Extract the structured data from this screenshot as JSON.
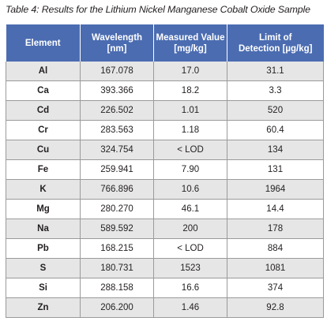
{
  "caption": "Table 4: Results for the Lithium Nickel Manganese Cobalt Oxide Sample",
  "header": {
    "element": "Element",
    "wavelength_line1": "Wavelength",
    "wavelength_line2": "[nm]",
    "measured_line1": "Measured Value",
    "measured_line2": "[mg/kg]",
    "lod_line1": "Limit of",
    "lod_line2": "Detection [µg/kg]"
  },
  "rows": [
    {
      "element": "Al",
      "wavelength": "167.078",
      "measured": "17.0",
      "lod": "31.1"
    },
    {
      "element": "Ca",
      "wavelength": "393.366",
      "measured": "18.2",
      "lod": "3.3"
    },
    {
      "element": "Cd",
      "wavelength": "226.502",
      "measured": "1.01",
      "lod": "520"
    },
    {
      "element": "Cr",
      "wavelength": "283.563",
      "measured": "1.18",
      "lod": "60.4"
    },
    {
      "element": "Cu",
      "wavelength": "324.754",
      "measured": "< LOD",
      "lod": "134"
    },
    {
      "element": "Fe",
      "wavelength": "259.941",
      "measured": "7.90",
      "lod": "131"
    },
    {
      "element": "K",
      "wavelength": "766.896",
      "measured": "10.6",
      "lod": "1964"
    },
    {
      "element": "Mg",
      "wavelength": "280.270",
      "measured": "46.1",
      "lod": "14.4"
    },
    {
      "element": "Na",
      "wavelength": "589.592",
      "measured": "200",
      "lod": "178"
    },
    {
      "element": "Pb",
      "wavelength": "168.215",
      "measured": "< LOD",
      "lod": "884"
    },
    {
      "element": "S",
      "wavelength": "180.731",
      "measured": "1523",
      "lod": "1081"
    },
    {
      "element": "Si",
      "wavelength": "288.158",
      "measured": "16.6",
      "lod": "374"
    },
    {
      "element": "Zn",
      "wavelength": "206.200",
      "measured": "1.46",
      "lod": "92.8"
    }
  ],
  "colors": {
    "header_bg": "#4b6cb1",
    "row_shade": "#e6e6e7"
  }
}
